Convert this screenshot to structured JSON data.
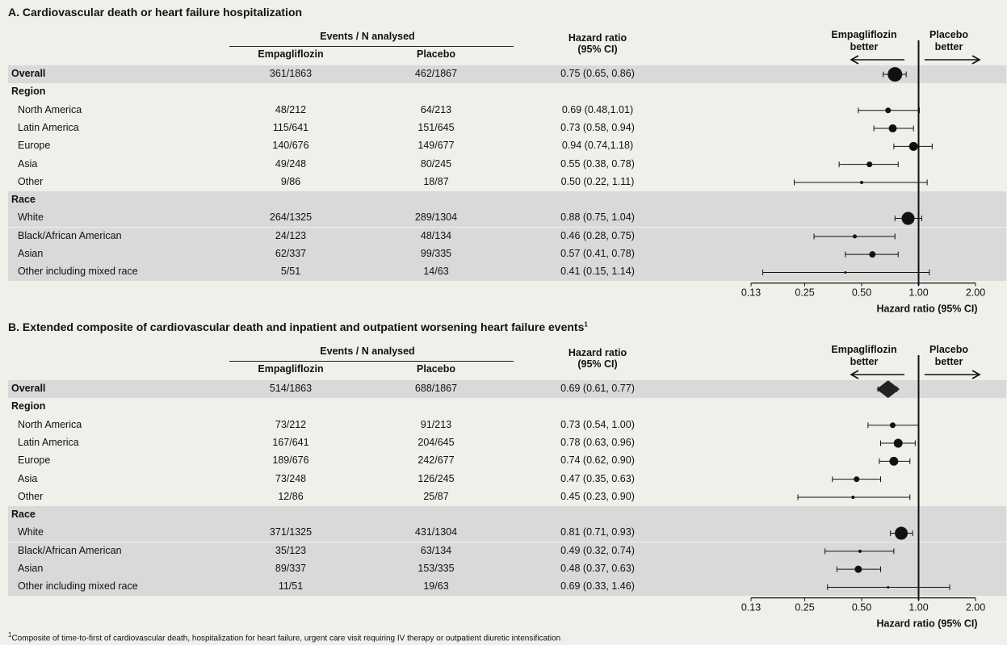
{
  "footnote": {
    "mark": "1",
    "text": "Composite of time-to-first of cardiovascular death, hospitalization for heart failure, urgent care visit requiring IV therapy or outpatient diuretic intensification"
  },
  "chart_data": [
    {
      "type": "forest",
      "title": "A. Cardiovascular death or heart failure hospitalization",
      "title_mark": "",
      "column_headers": {
        "events": "Events / N analysed",
        "empa": "Empagliflozin",
        "placebo": "Placebo",
        "hr_line1": "Hazard ratio",
        "hr_line2": "(95%  CI)"
      },
      "direction_labels": {
        "left_line1": "Empagliflozin",
        "left_line2": "better",
        "right_line1": "Placebo",
        "right_line2": "better"
      },
      "x_scale": "log",
      "xlim": [
        0.13,
        2.0
      ],
      "x_ticks": [
        "0.13",
        "0.25",
        "0.50",
        "1.00",
        "2.00"
      ],
      "xlabel": "Hazard ratio (95%  CI)",
      "reference_line": 1.0,
      "rows": [
        {
          "label": "Overall",
          "empa": "361/1863",
          "placebo": "462/1867",
          "hr_text": "0.75 (0.65, 0.86)",
          "hr": 0.75,
          "lo": 0.65,
          "hi": 0.86,
          "marker": "circle",
          "size": 9,
          "shade": true,
          "bold": true
        },
        {
          "label": "Region",
          "shade": false,
          "bold": true,
          "header": true
        },
        {
          "label": "North America",
          "empa": "48/212",
          "placebo": "64/213",
          "hr_text": "0.69 (0.48,1.01)",
          "hr": 0.69,
          "lo": 0.48,
          "hi": 1.01,
          "marker": "circle",
          "size": 3.5,
          "shade": false
        },
        {
          "label": "Latin America",
          "empa": "115/641",
          "placebo": "151/645",
          "hr_text": "0.73 (0.58, 0.94)",
          "hr": 0.73,
          "lo": 0.58,
          "hi": 0.94,
          "marker": "circle",
          "size": 5,
          "shade": false
        },
        {
          "label": "Europe",
          "empa": "140/676",
          "placebo": "149/677",
          "hr_text": "0.94 (0.74,1.18)",
          "hr": 0.94,
          "lo": 0.74,
          "hi": 1.18,
          "marker": "circle",
          "size": 5.5,
          "shade": false
        },
        {
          "label": "Asia",
          "empa": "49/248",
          "placebo": "80/245",
          "hr_text": "0.55 (0.38, 0.78)",
          "hr": 0.55,
          "lo": 0.38,
          "hi": 0.78,
          "marker": "circle",
          "size": 3.5,
          "shade": false
        },
        {
          "label": "Other",
          "empa": "9/86",
          "placebo": "18/87",
          "hr_text": "0.50 (0.22, 1.11)",
          "hr": 0.5,
          "lo": 0.22,
          "hi": 1.11,
          "marker": "circle",
          "size": 2,
          "shade": false
        },
        {
          "label": "Race",
          "shade": true,
          "bold": true,
          "header": true
        },
        {
          "label": "White",
          "empa": "264/1325",
          "placebo": "289/1304",
          "hr_text": "0.88 (0.75, 1.04)",
          "hr": 0.88,
          "lo": 0.75,
          "hi": 1.04,
          "marker": "circle",
          "size": 8,
          "shade": true
        },
        {
          "label": "Black/African American",
          "empa": "24/123",
          "placebo": "48/134",
          "hr_text": "0.46 (0.28, 0.75)",
          "hr": 0.46,
          "lo": 0.28,
          "hi": 0.75,
          "marker": "circle",
          "size": 2.5,
          "shade": true
        },
        {
          "label": "Asian",
          "empa": "62/337",
          "placebo": "99/335",
          "hr_text": "0.57 (0.41, 0.78)",
          "hr": 0.57,
          "lo": 0.41,
          "hi": 0.78,
          "marker": "circle",
          "size": 4,
          "shade": true
        },
        {
          "label": "Other including mixed race",
          "empa": "5/51",
          "placebo": "14/63",
          "hr_text": "0.41 (0.15, 1.14)",
          "hr": 0.41,
          "lo": 0.15,
          "hi": 1.14,
          "marker": "circle",
          "size": 1.5,
          "shade": true
        }
      ]
    },
    {
      "type": "forest",
      "title": "B. Extended composite of cardiovascular death and inpatient and outpatient worsening heart failure events",
      "title_mark": "1",
      "column_headers": {
        "events": "Events / N analysed",
        "empa": "Empagliflozin",
        "placebo": "Placebo",
        "hr_line1": "Hazard ratio",
        "hr_line2": "(95%  CI)"
      },
      "direction_labels": {
        "left_line1": "Empagliflozin",
        "left_line2": "better",
        "right_line1": "Placebo",
        "right_line2": "better"
      },
      "x_scale": "log",
      "xlim": [
        0.13,
        2.0
      ],
      "x_ticks": [
        "0.13",
        "0.25",
        "0.50",
        "1.00",
        "2.00"
      ],
      "xlabel": "Hazard ratio (95%  CI)",
      "reference_line": 1.0,
      "rows": [
        {
          "label": "Overall",
          "empa": "514/1863",
          "placebo": "688/1867",
          "hr_text": "0.69 (0.61, 0.77)",
          "hr": 0.69,
          "lo": 0.61,
          "hi": 0.77,
          "marker": "diamond",
          "size": 9,
          "shade": true,
          "bold": true
        },
        {
          "label": "Region",
          "shade": false,
          "bold": true,
          "header": true
        },
        {
          "label": "North America",
          "empa": "73/212",
          "placebo": "91/213",
          "hr_text": "0.73 (0.54, 1.00)",
          "hr": 0.73,
          "lo": 0.54,
          "hi": 1.0,
          "marker": "circle",
          "size": 3.5,
          "shade": false
        },
        {
          "label": "Latin America",
          "empa": "167/641",
          "placebo": "204/645",
          "hr_text": "0.78 (0.63, 0.96)",
          "hr": 0.78,
          "lo": 0.63,
          "hi": 0.96,
          "marker": "circle",
          "size": 5.5,
          "shade": false
        },
        {
          "label": "Europe",
          "empa": "189/676",
          "placebo": "242/677",
          "hr_text": "0.74 (0.62, 0.90)",
          "hr": 0.74,
          "lo": 0.62,
          "hi": 0.9,
          "marker": "circle",
          "size": 5.5,
          "shade": false
        },
        {
          "label": "Asia",
          "empa": "73/248",
          "placebo": "126/245",
          "hr_text": "0.47 (0.35, 0.63)",
          "hr": 0.47,
          "lo": 0.35,
          "hi": 0.63,
          "marker": "circle",
          "size": 3.5,
          "shade": false
        },
        {
          "label": "Other",
          "empa": "12/86",
          "placebo": "25/87",
          "hr_text": "0.45 (0.23, 0.90)",
          "hr": 0.45,
          "lo": 0.23,
          "hi": 0.9,
          "marker": "circle",
          "size": 2,
          "shade": false
        },
        {
          "label": "Race",
          "shade": true,
          "bold": true,
          "header": true
        },
        {
          "label": "White",
          "empa": "371/1325",
          "placebo": "431/1304",
          "hr_text": "0.81 (0.71, 0.93)",
          "hr": 0.81,
          "lo": 0.71,
          "hi": 0.93,
          "marker": "circle",
          "size": 8,
          "shade": true
        },
        {
          "label": "Black/African American",
          "empa": "35/123",
          "placebo": "63/134",
          "hr_text": "0.49 (0.32, 0.74)",
          "hr": 0.49,
          "lo": 0.32,
          "hi": 0.74,
          "marker": "circle",
          "size": 2,
          "shade": true
        },
        {
          "label": "Asian",
          "empa": "89/337",
          "placebo": "153/335",
          "hr_text": "0.48 (0.37, 0.63)",
          "hr": 0.48,
          "lo": 0.37,
          "hi": 0.63,
          "marker": "circle",
          "size": 4.5,
          "shade": true
        },
        {
          "label": "Other including mixed race",
          "empa": "11/51",
          "placebo": "19/63",
          "hr_text": "0.69 (0.33, 1.46)",
          "hr": 0.69,
          "lo": 0.33,
          "hi": 1.46,
          "marker": "circle",
          "size": 1.5,
          "shade": true
        }
      ]
    }
  ]
}
